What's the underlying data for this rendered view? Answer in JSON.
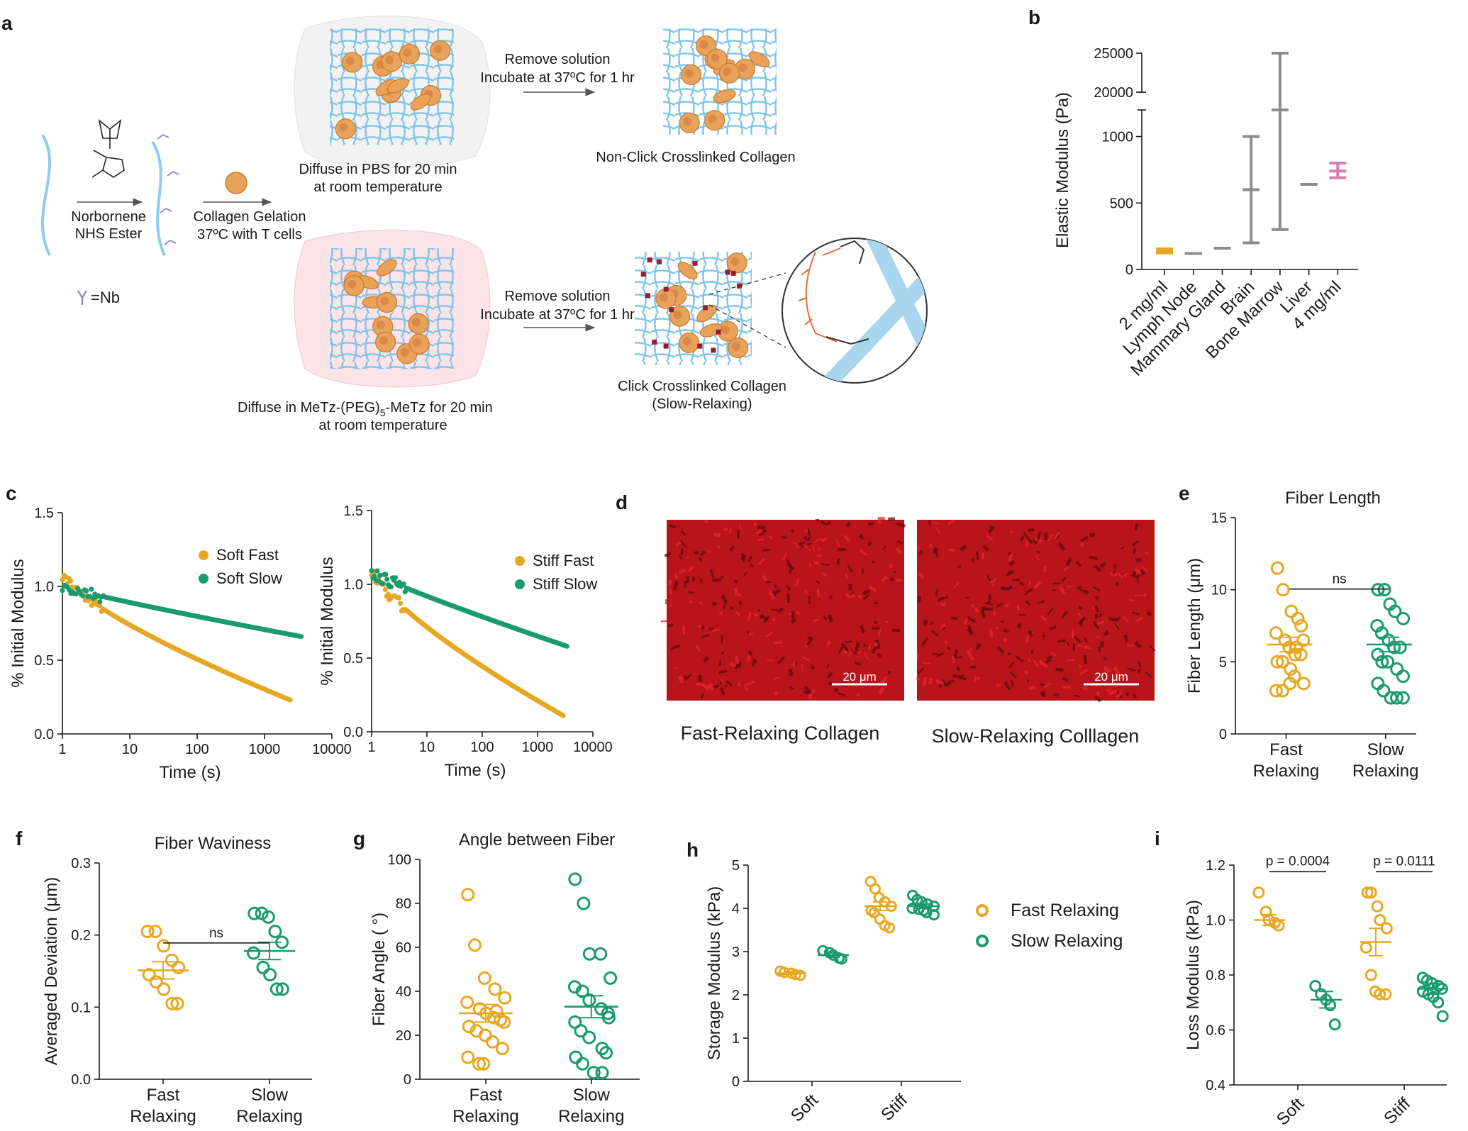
{
  "panel_labels": {
    "a": "a",
    "b": "b",
    "c": "c",
    "d": "d",
    "e": "e",
    "f": "f",
    "g": "g",
    "h": "h",
    "i": "i"
  },
  "colors": {
    "fast": "#e6a823",
    "slow": "#1a9b6e",
    "gray": "#8c8c8c",
    "pink": "#d97cb0",
    "red": "#c4161c",
    "fiber": "#7ec4e8",
    "cell": "#e8a25a"
  },
  "schematic": {
    "reagent": [
      "Norbornene",
      "NHS Ester"
    ],
    "gel": [
      "Collagen Gelation",
      "37ºC with T cells"
    ],
    "nb_legend": "=Nb",
    "top_diffuse": [
      "Diffuse in PBS for 20 min",
      "at room temperature"
    ],
    "bottom_diffuse_pre": "Diffuse in MeTz-(PEG)",
    "bottom_diffuse_sub": "5",
    "bottom_diffuse_post": "-MeTz for 20 min",
    "bottom_diffuse_line2": "at room temperature",
    "remove": [
      "Remove solution",
      "Incubate at 37ºC for 1 hr"
    ],
    "remove2_line2": "Incubate at 37ºC for 1 hr",
    "non_click": "Non-Click Crosslinked Collagen",
    "click": [
      "Click Crosslinked Collagen",
      "(Slow-Relaxing)"
    ],
    "molecule_icon": "norbornene-nhs-ester-structure-icon",
    "cell_icon": "t-cell-icon",
    "zoom_icon": "crosslinked-fiber-zoom-icon"
  },
  "micrographs": {
    "scalebar": "20 μm",
    "fast_caption": "Fast-Relaxing Collagen",
    "slow_caption": "Slow-Relaxing Colllagen"
  },
  "chart_data": [
    {
      "id": "b",
      "type": "range",
      "ylabel": "Elastic Modulus (Pa)",
      "yticks": [
        "0",
        "500",
        "1000",
        "20000",
        "25000"
      ],
      "ylim": [
        0,
        25000
      ],
      "broken_axis": [
        1200,
        20000
      ],
      "categories": [
        "2 mg/ml",
        "Lymph Node",
        "Mammary Gland",
        "Brain",
        "Bone Marrow",
        "Liver",
        "4 mg/ml"
      ],
      "series": [
        {
          "category": "2 mg/ml",
          "low": 125,
          "high": 155,
          "mid": 140,
          "kind": "mean-sd",
          "color": "fast"
        },
        {
          "category": "Lymph Node",
          "low": 120,
          "high": 120,
          "mid": 120,
          "kind": "range",
          "color": "gray"
        },
        {
          "category": "Mammary Gland",
          "low": 160,
          "high": 160,
          "mid": 160,
          "kind": "range",
          "color": "gray"
        },
        {
          "category": "Brain",
          "low": 200,
          "high": 1000,
          "mid": 600,
          "kind": "range",
          "color": "gray"
        },
        {
          "category": "Bone Marrow",
          "low": 300,
          "high": 25000,
          "mid": 1200,
          "kind": "range",
          "color": "gray"
        },
        {
          "category": "Liver",
          "low": 640,
          "high": 640,
          "mid": 640,
          "kind": "range",
          "color": "gray"
        },
        {
          "category": "4 mg/ml",
          "low": 690,
          "high": 800,
          "mid": 740,
          "kind": "mean-sd",
          "color": "pink"
        }
      ]
    },
    {
      "id": "c1",
      "type": "scatter",
      "xlabel": "Time (s)",
      "ylabel": "% Initial Modulus",
      "xscale": "log",
      "xlim": [
        1,
        10000
      ],
      "ylim": [
        0.0,
        1.5
      ],
      "xticks": [
        "1",
        "10",
        "100",
        "1000",
        "10000"
      ],
      "yticks": [
        "0.0",
        "0.5",
        "1.0",
        "1.5"
      ],
      "series": [
        {
          "name": "Soft Fast",
          "color": "fast",
          "start": 1.08,
          "end": 0.23,
          "xend": 2400
        },
        {
          "name": "Soft Slow",
          "color": "slow",
          "start": 1.0,
          "end": 0.66,
          "xend": 3500
        }
      ]
    },
    {
      "id": "c2",
      "type": "scatter",
      "xlabel": "Time (s)",
      "ylabel": "% Initial Modulus",
      "xscale": "log",
      "xlim": [
        1,
        10000
      ],
      "ylim": [
        0.0,
        1.5
      ],
      "xticks": [
        "1",
        "10",
        "100",
        "1000",
        "10000"
      ],
      "yticks": [
        "0.0",
        "0.5",
        "1.0",
        "1.5"
      ],
      "series": [
        {
          "name": "Stiff Fast",
          "color": "fast",
          "start": 1.1,
          "end": 0.11,
          "xend": 2900
        },
        {
          "name": "Stiff Slow",
          "color": "slow",
          "start": 1.08,
          "end": 0.58,
          "xend": 3400
        }
      ]
    },
    {
      "id": "e",
      "type": "scatter",
      "title": "Fiber Length",
      "ylabel": "Fiber Length (μm)",
      "ylim": [
        0,
        15
      ],
      "yticks": [
        "0",
        "5",
        "10",
        "15"
      ],
      "categories": [
        "Fast Relaxing",
        "Slow Relaxing"
      ],
      "significance": "ns",
      "series": [
        {
          "category": "Fast Relaxing",
          "color": "fast",
          "mean": 6.2,
          "sem": 0.5,
          "values": [
            11.5,
            10.0,
            8.5,
            8.0,
            7.5,
            7.0,
            6.5,
            6.0,
            6.0,
            5.5,
            5.0,
            5.0,
            4.5,
            4.0,
            3.5,
            3.0,
            3.0,
            3.5,
            5.5,
            6.5
          ]
        },
        {
          "category": "Slow Relaxing",
          "color": "slow",
          "mean": 6.2,
          "sem": 0.5,
          "values": [
            10.0,
            10.0,
            9.0,
            8.5,
            8.0,
            7.5,
            7.0,
            6.5,
            6.0,
            6.0,
            5.5,
            5.0,
            5.0,
            4.5,
            4.0,
            3.5,
            3.0,
            2.5,
            2.5,
            2.5
          ]
        }
      ]
    },
    {
      "id": "f",
      "type": "scatter",
      "title": "Fiber Waviness",
      "ylabel": "Averaged Deviation (μm)",
      "ylim": [
        0.0,
        0.3
      ],
      "yticks": [
        "0.0",
        "0.1",
        "0.2",
        "0.3"
      ],
      "categories": [
        "Fast Relaxing",
        "Slow Relaxing"
      ],
      "significance": "ns",
      "series": [
        {
          "category": "Fast Relaxing",
          "color": "fast",
          "mean": 0.151,
          "sem": 0.012,
          "values": [
            0.205,
            0.205,
            0.185,
            0.165,
            0.155,
            0.145,
            0.135,
            0.125,
            0.105,
            0.105
          ]
        },
        {
          "category": "Slow Relaxing",
          "color": "slow",
          "mean": 0.178,
          "sem": 0.012,
          "values": [
            0.23,
            0.23,
            0.225,
            0.205,
            0.19,
            0.175,
            0.155,
            0.145,
            0.125,
            0.125
          ]
        }
      ]
    },
    {
      "id": "g",
      "type": "scatter",
      "title": "Angle between Fiber",
      "ylabel": "Fiber Angle ( °)",
      "ylim": [
        0,
        100
      ],
      "yticks": [
        "0",
        "20",
        "40",
        "60",
        "80",
        "100"
      ],
      "categories": [
        "Fast Relaxing",
        "Slow Relaxing"
      ],
      "series": [
        {
          "category": "Fast Relaxing",
          "color": "fast",
          "mean": 30,
          "sem": 4,
          "values": [
            84,
            61,
            46,
            41,
            37,
            35,
            32,
            30,
            28,
            26,
            24,
            22,
            20,
            17,
            14,
            10,
            7,
            7,
            31,
            27
          ]
        },
        {
          "category": "Slow Relaxing",
          "color": "slow",
          "mean": 33,
          "sem": 5,
          "values": [
            91,
            80,
            57,
            57,
            46,
            42,
            40,
            36,
            32,
            30,
            26,
            22,
            19,
            14,
            12,
            10,
            7,
            3,
            3,
            28
          ]
        }
      ]
    },
    {
      "id": "h",
      "type": "scatter",
      "ylabel": "Storage Modulus (kPa)",
      "ylim": [
        0,
        5
      ],
      "yticks": [
        "0",
        "1",
        "2",
        "3",
        "4",
        "5"
      ],
      "categories": [
        "Soft",
        "Stiff"
      ],
      "legend": [
        "Fast Relaxing",
        "Slow Relaxing"
      ],
      "series": [
        {
          "category": "Soft",
          "name": "Fast Relaxing",
          "color": "fast",
          "mean": 2.5,
          "sem": 0.03,
          "values": [
            2.55,
            2.52,
            2.5,
            2.47,
            2.45
          ]
        },
        {
          "category": "Soft",
          "name": "Slow Relaxing",
          "color": "slow",
          "mean": 2.92,
          "sem": 0.05,
          "values": [
            3.02,
            2.98,
            2.92,
            2.85,
            2.83
          ]
        },
        {
          "category": "Stiff",
          "name": "Fast Relaxing",
          "color": "fast",
          "mean": 4.05,
          "sem": 0.1,
          "values": [
            4.62,
            4.45,
            4.25,
            4.15,
            4.05,
            3.95,
            3.9,
            3.75,
            3.6,
            3.55
          ]
        },
        {
          "category": "Stiff",
          "name": "Slow Relaxing",
          "color": "slow",
          "mean": 4.05,
          "sem": 0.05,
          "values": [
            4.3,
            4.2,
            4.15,
            4.1,
            4.05,
            4.0,
            3.98,
            3.95,
            3.9,
            3.85
          ]
        }
      ]
    },
    {
      "id": "i",
      "type": "scatter",
      "ylabel": "Loss Modulus (kPa)",
      "ylim": [
        0.4,
        1.2
      ],
      "yticks": [
        "0.4",
        "0.6",
        "0.8",
        "1.0",
        "1.2"
      ],
      "categories": [
        "Soft",
        "Stiff"
      ],
      "pvalues": [
        "p = 0.0004",
        "p = 0.0111"
      ],
      "series": [
        {
          "category": "Soft",
          "name": "Fast Relaxing",
          "color": "fast",
          "mean": 1.0,
          "sem": 0.02,
          "values": [
            1.1,
            1.03,
            1.0,
            0.99,
            0.98
          ]
        },
        {
          "category": "Soft",
          "name": "Slow Relaxing",
          "color": "slow",
          "mean": 0.71,
          "sem": 0.03,
          "values": [
            0.76,
            0.73,
            0.71,
            0.69,
            0.62
          ]
        },
        {
          "category": "Stiff",
          "name": "Fast Relaxing",
          "color": "fast",
          "mean": 0.92,
          "sem": 0.05,
          "values": [
            1.1,
            1.1,
            1.05,
            1.0,
            0.97,
            0.9,
            0.8,
            0.74,
            0.73,
            0.73
          ]
        },
        {
          "category": "Stiff",
          "name": "Slow Relaxing",
          "color": "slow",
          "mean": 0.75,
          "sem": 0.02,
          "values": [
            0.79,
            0.78,
            0.77,
            0.76,
            0.75,
            0.74,
            0.73,
            0.72,
            0.7,
            0.65
          ]
        }
      ]
    }
  ]
}
